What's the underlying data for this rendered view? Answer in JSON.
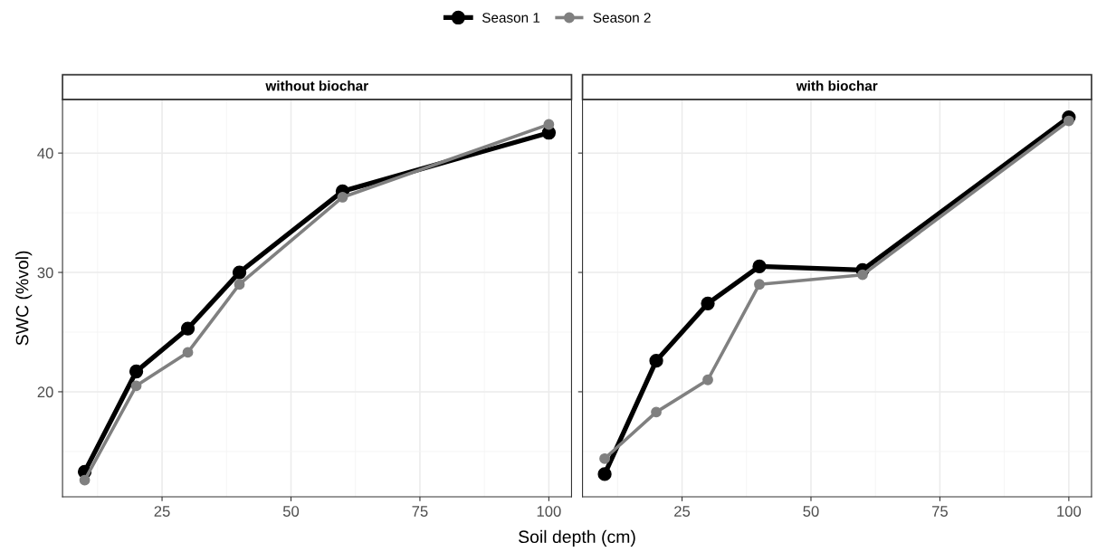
{
  "chart_data": [
    {
      "type": "line",
      "title": "without biochar",
      "xlabel": "Soil depth (cm)",
      "ylabel": "SWC (%vol)",
      "x": [
        10,
        20,
        30,
        40,
        60,
        100
      ],
      "xlim": [
        5.7,
        104.4
      ],
      "xticks": [
        25,
        50,
        75,
        100
      ],
      "ylim": [
        11.2,
        44.5
      ],
      "yticks": [
        20,
        30,
        40
      ],
      "grid": true,
      "legend": "top",
      "marker": "circle",
      "line_style": "solid",
      "series": [
        {
          "name": "Season 1",
          "color": "#000000",
          "values": [
            13.3,
            21.7,
            25.3,
            30.0,
            36.8,
            41.7
          ]
        },
        {
          "name": "Season 2",
          "color": "#808080",
          "values": [
            12.6,
            20.5,
            23.3,
            29.0,
            36.3,
            42.4
          ]
        }
      ]
    },
    {
      "type": "line",
      "title": "with biochar",
      "x": [
        10,
        20,
        30,
        40,
        60,
        100
      ],
      "xlim": [
        5.7,
        104.4
      ],
      "xticks": [
        25,
        50,
        75,
        100
      ],
      "ylim": [
        11.2,
        44.5
      ],
      "yticks": [
        20,
        30,
        40
      ],
      "tick_labels": "x",
      "grid": true,
      "marker": "circle",
      "line_style": "solid",
      "series": [
        {
          "name": "Season 1",
          "color": "#000000",
          "values": [
            13.1,
            22.6,
            27.4,
            30.5,
            30.2,
            43.0
          ]
        },
        {
          "name": "Season 2",
          "color": "#808080",
          "values": [
            14.4,
            18.3,
            21.0,
            29.0,
            29.8,
            42.7
          ]
        }
      ]
    }
  ]
}
